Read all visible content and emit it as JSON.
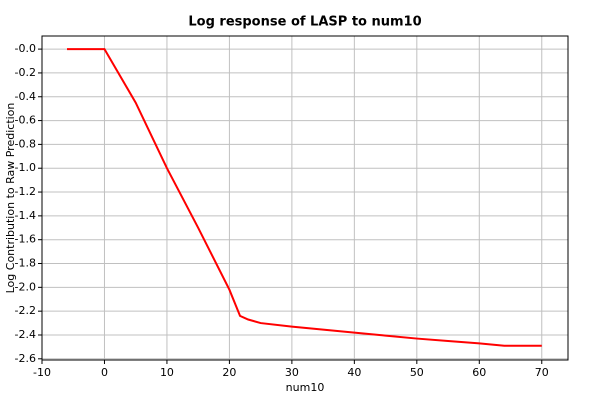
{
  "chart_data": {
    "type": "line",
    "title": "Log response of LASP to num10",
    "x_label": "num10",
    "y_label": "Log Contribution to Raw Prediction",
    "x": [
      -6,
      0,
      5,
      10,
      15,
      20,
      21.7,
      23,
      25,
      30,
      35,
      40,
      45,
      50,
      55,
      60,
      64,
      70
    ],
    "series": [
      {
        "name": "LASP",
        "color": "#ff0000",
        "values": [
          0,
          0,
          -0.45,
          -1.0,
          -1.5,
          -2.02,
          -2.24,
          -2.27,
          -2.3,
          -2.33,
          -2.355,
          -2.38,
          -2.405,
          -2.43,
          -2.45,
          -2.47,
          -2.49,
          -2.49
        ]
      }
    ],
    "xlim": [
      -10,
      74.2
    ],
    "ylim": [
      -2.61,
      0.11
    ],
    "xticks": [
      -10,
      0,
      10,
      20,
      30,
      40,
      50,
      60,
      70
    ],
    "yticks": [
      {
        "value": 0,
        "label": "-0.0"
      },
      -0.2,
      -0.4,
      -0.6,
      -0.8,
      {
        "value": -1,
        "label": "-1.0"
      },
      -1.2,
      -1.4,
      -1.6,
      -1.8,
      {
        "value": -2,
        "label": "-2.0"
      },
      -2.2,
      -2.4,
      -2.6
    ],
    "grid": true
  }
}
